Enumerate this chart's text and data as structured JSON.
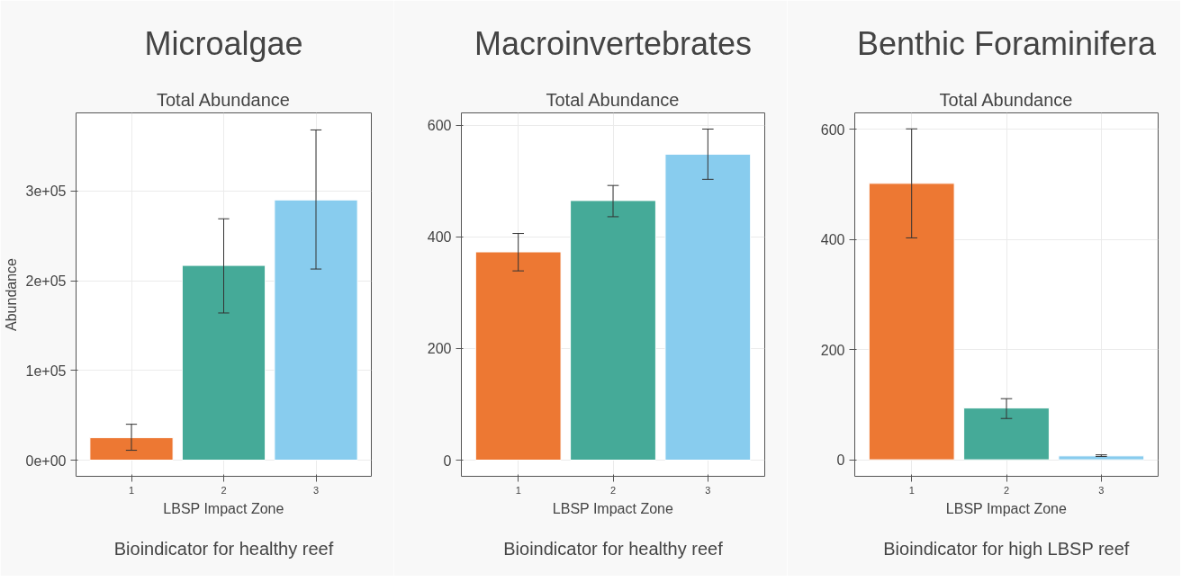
{
  "chart_data": [
    {
      "type": "bar",
      "title": "Microalgae",
      "subtitle": "Total Abundance",
      "xlabel": "LBSP Impact Zone",
      "ylabel": "Abundance",
      "categories": [
        "1",
        "2",
        "3"
      ],
      "values": [
        25000,
        217000,
        290000
      ],
      "colors": [
        "#ed7833",
        "#45aa98",
        "#88ccee"
      ],
      "errors": [
        [
          11000,
          40000
        ],
        [
          164000,
          269000
        ],
        [
          213000,
          368000
        ]
      ],
      "ylim": [
        -18000,
        387000
      ],
      "yticks": [
        {
          "value": 0,
          "label": "0e+00"
        },
        {
          "value": 100000,
          "label": "1e+05"
        },
        {
          "value": 200000,
          "label": "2e+05"
        },
        {
          "value": 300000,
          "label": "3e+05"
        }
      ],
      "grid": true,
      "annotations": [
        "Bioindicator for healthy reef"
      ]
    },
    {
      "type": "bar",
      "title": "Macroinvertebrates",
      "subtitle": "Total Abundance",
      "xlabel": "LBSP Impact Zone",
      "categories": [
        "1",
        "2",
        "3"
      ],
      "values": [
        373,
        465,
        548
      ],
      "colors": [
        "#ed7833",
        "#45aa98",
        "#88ccee"
      ],
      "errors": [
        [
          339,
          406
        ],
        [
          436,
          492
        ],
        [
          503,
          593
        ]
      ],
      "ylim": [
        -29,
        622
      ],
      "yticks": [
        0,
        200,
        400,
        600
      ],
      "grid": true,
      "annotations": [
        "Bioindicator for healthy reef"
      ]
    },
    {
      "type": "bar",
      "title": "Benthic Foraminifera",
      "subtitle": "Total Abundance",
      "xlabel": "LBSP Impact Zone",
      "categories": [
        "1",
        "2",
        "3"
      ],
      "values": [
        502,
        94,
        7
      ],
      "colors": [
        "#ed7833",
        "#45aa98",
        "#88ccee"
      ],
      "errors": [
        [
          403,
          601
        ],
        [
          75,
          111
        ],
        [
          6,
          9
        ]
      ],
      "ylim": [
        -30,
        630
      ],
      "yticks": [
        0,
        200,
        400,
        600
      ],
      "grid": true,
      "annotations": [
        "Bioindicator for high LBSP reef"
      ]
    }
  ]
}
